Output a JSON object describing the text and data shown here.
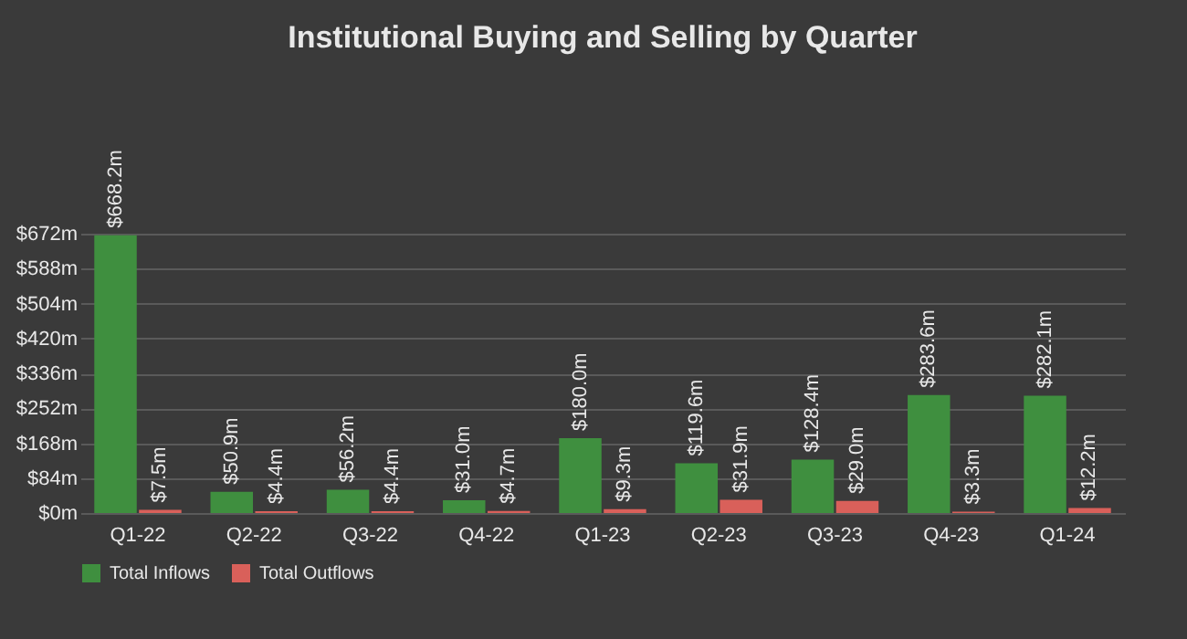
{
  "chart_data": {
    "type": "bar",
    "title": "Institutional Buying and Selling by Quarter",
    "categories": [
      "Q1-22",
      "Q2-22",
      "Q3-22",
      "Q4-22",
      "Q1-23",
      "Q2-23",
      "Q3-23",
      "Q4-23",
      "Q1-24"
    ],
    "series": [
      {
        "name": "Total Inflows",
        "color": "#3f8f3f",
        "values": [
          668.2,
          50.9,
          56.2,
          31.0,
          180.0,
          119.6,
          128.4,
          283.6,
          282.1
        ],
        "value_labels": [
          "$668.2m",
          "$50.9m",
          "$56.2m",
          "$31.0m",
          "$180.0m",
          "$119.6m",
          "$128.4m",
          "$283.6m",
          "$282.1m"
        ]
      },
      {
        "name": "Total Outflows",
        "color": "#d9605a",
        "values": [
          7.5,
          4.4,
          4.4,
          4.7,
          9.3,
          31.9,
          29.0,
          3.3,
          12.2
        ],
        "value_labels": [
          "$7.5m",
          "$4.4m",
          "$4.4m",
          "$4.7m",
          "$9.3m",
          "$31.9m",
          "$29.0m",
          "$3.3m",
          "$12.2m"
        ]
      }
    ],
    "ylim": [
      0,
      672
    ],
    "yticks": [
      {
        "value": 0,
        "label": "$0m"
      },
      {
        "value": 84,
        "label": "$84m"
      },
      {
        "value": 168,
        "label": "$168m"
      },
      {
        "value": 252,
        "label": "$252m"
      },
      {
        "value": 336,
        "label": "$336m"
      },
      {
        "value": 420,
        "label": "$420m"
      },
      {
        "value": 504,
        "label": "$504m"
      },
      {
        "value": 588,
        "label": "$588m"
      },
      {
        "value": 672,
        "label": "$672m"
      }
    ],
    "grid": "y",
    "legend": "bottom left"
  }
}
